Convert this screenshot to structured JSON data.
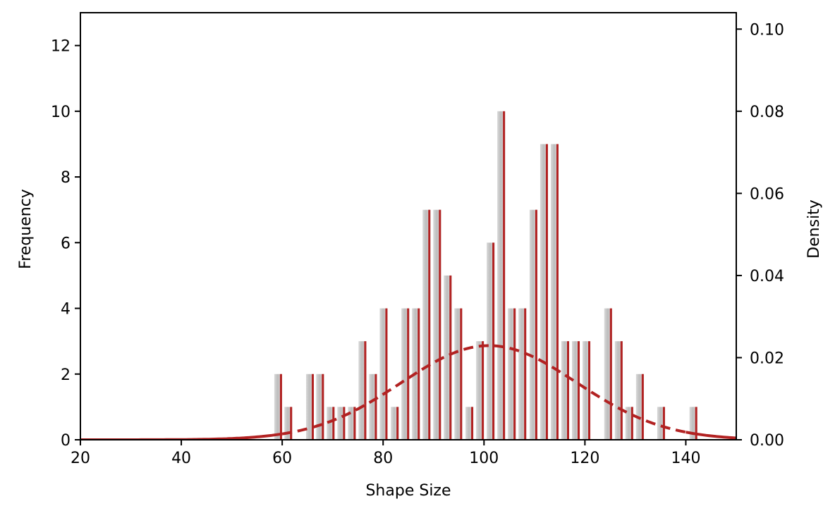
{
  "chart_data": {
    "type": "bar",
    "xlabel": "Shape Size",
    "ylabel": "Frequency",
    "y2label": "Density",
    "xlim": [
      20,
      150
    ],
    "ylim": [
      0,
      13
    ],
    "y2lim": [
      0,
      0.104
    ],
    "x_ticks": [
      "20",
      "40",
      "60",
      "80",
      "100",
      "120",
      "140"
    ],
    "y_ticks": [
      "0",
      "2",
      "4",
      "6",
      "8",
      "10",
      "12"
    ],
    "y2_ticks": [
      "0.00",
      "0.02",
      "0.04",
      "0.06",
      "0.08",
      "0.10"
    ],
    "grid": false,
    "bars": [
      {
        "x": 59.2,
        "count": 2
      },
      {
        "x": 61.2,
        "count": 1
      },
      {
        "x": 65.5,
        "count": 2
      },
      {
        "x": 67.5,
        "count": 2
      },
      {
        "x": 69.6,
        "count": 1
      },
      {
        "x": 71.7,
        "count": 1
      },
      {
        "x": 73.8,
        "count": 1
      },
      {
        "x": 75.9,
        "count": 3
      },
      {
        "x": 78.0,
        "count": 2
      },
      {
        "x": 80.1,
        "count": 4
      },
      {
        "x": 82.3,
        "count": 1
      },
      {
        "x": 84.4,
        "count": 4
      },
      {
        "x": 86.5,
        "count": 4
      },
      {
        "x": 88.6,
        "count": 7
      },
      {
        "x": 90.7,
        "count": 7
      },
      {
        "x": 92.8,
        "count": 5
      },
      {
        "x": 94.9,
        "count": 4
      },
      {
        "x": 97.1,
        "count": 1
      },
      {
        "x": 99.2,
        "count": 3
      },
      {
        "x": 101.3,
        "count": 6
      },
      {
        "x": 103.4,
        "count": 10
      },
      {
        "x": 105.5,
        "count": 4
      },
      {
        "x": 107.6,
        "count": 4
      },
      {
        "x": 109.8,
        "count": 7
      },
      {
        "x": 111.9,
        "count": 9
      },
      {
        "x": 114.0,
        "count": 9
      },
      {
        "x": 116.1,
        "count": 3
      },
      {
        "x": 118.2,
        "count": 3
      },
      {
        "x": 120.3,
        "count": 3
      },
      {
        "x": 124.6,
        "count": 4
      },
      {
        "x": 126.7,
        "count": 3
      },
      {
        "x": 128.8,
        "count": 1
      },
      {
        "x": 130.9,
        "count": 2
      },
      {
        "x": 135.1,
        "count": 1
      },
      {
        "x": 141.5,
        "count": 1
      }
    ],
    "density_curve": {
      "distribution": "normal",
      "mean": 101,
      "std": 17.4,
      "x_range": [
        20,
        150
      ]
    },
    "colors": {
      "bar_light": "#d3d3d3",
      "bar_mid": "#b4b4b4",
      "bar_edge": "#b22222",
      "curve": "#b22222",
      "axis": "#000000"
    }
  }
}
